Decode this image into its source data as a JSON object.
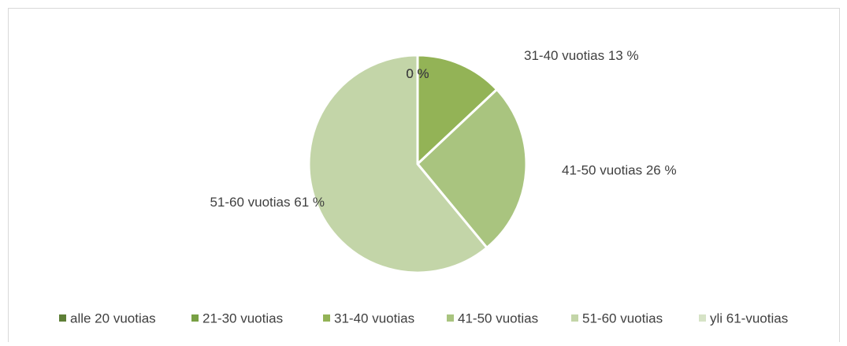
{
  "chart_data": {
    "type": "pie",
    "categories": [
      "alle 20 vuotias",
      "21-30 vuotias",
      "31-40 vuotias",
      "41-50 vuotias",
      "51-60 vuotias",
      "yli 61-vuotias"
    ],
    "values": [
      0,
      0,
      13,
      26,
      61,
      0
    ],
    "value_labels": [
      "0 %",
      "0 %",
      "13 %",
      "26 %",
      "61 %",
      "0 %"
    ],
    "colors": [
      "#5e7f37",
      "#78a044",
      "#93b356",
      "#a9c47f",
      "#c3d5a8",
      "#d6e3c6"
    ],
    "legend": "bottom"
  }
}
